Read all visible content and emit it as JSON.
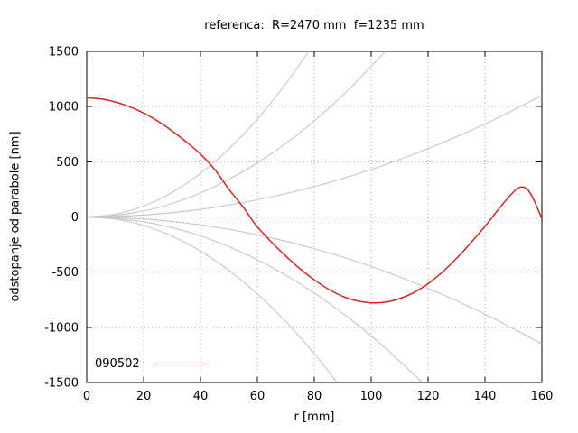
{
  "chart_data": {
    "type": "line",
    "title": "referenca:  R=2470 mm  f=1235 mm",
    "xlabel": "r [mm]",
    "ylabel": "odstopanje od parabole [nm]",
    "xlim": [
      0,
      160
    ],
    "ylim": [
      -1500,
      1500
    ],
    "x_ticks": [
      0,
      20,
      40,
      60,
      80,
      100,
      120,
      140,
      160
    ],
    "y_ticks": [
      -1500,
      -1000,
      -500,
      0,
      500,
      1000,
      1500
    ],
    "grid": "dotted",
    "legend": {
      "label": "090502",
      "position": "bottom-left"
    },
    "colors": {
      "measurement": "#dd2222",
      "reference": "#c6c6c6",
      "grid": "#9e9e9e",
      "axis": "#000000"
    },
    "series": [
      {
        "name": "reference-up-steep",
        "role": "reference",
        "points": [
          [
            0,
            0
          ],
          [
            10,
            25
          ],
          [
            20,
            99
          ],
          [
            30,
            222
          ],
          [
            40,
            395
          ],
          [
            50,
            617
          ],
          [
            60,
            888
          ],
          [
            70,
            1208
          ],
          [
            78,
            1500
          ]
        ]
      },
      {
        "name": "reference-up-mid",
        "role": "reference",
        "points": [
          [
            0,
            0
          ],
          [
            15,
            31
          ],
          [
            30,
            122
          ],
          [
            45,
            276
          ],
          [
            60,
            490
          ],
          [
            75,
            765
          ],
          [
            90,
            1102
          ],
          [
            105,
            1500
          ]
        ]
      },
      {
        "name": "reference-up-shallow",
        "role": "reference",
        "points": [
          [
            0,
            0
          ],
          [
            20,
            17
          ],
          [
            40,
            69
          ],
          [
            60,
            155
          ],
          [
            80,
            275
          ],
          [
            100,
            430
          ],
          [
            120,
            619
          ],
          [
            140,
            842
          ],
          [
            160,
            1100
          ]
        ]
      },
      {
        "name": "reference-down-steep",
        "role": "reference",
        "points": [
          [
            0,
            0
          ],
          [
            10,
            -19
          ],
          [
            20,
            -77
          ],
          [
            30,
            -174
          ],
          [
            40,
            -310
          ],
          [
            50,
            -484
          ],
          [
            60,
            -697
          ],
          [
            70,
            -949
          ],
          [
            80,
            -1240
          ],
          [
            88,
            -1500
          ]
        ]
      },
      {
        "name": "reference-down-mid",
        "role": "reference",
        "points": [
          [
            0,
            0
          ],
          [
            20,
            -43
          ],
          [
            40,
            -172
          ],
          [
            60,
            -388
          ],
          [
            80,
            -689
          ],
          [
            100,
            -1077
          ],
          [
            118,
            -1500
          ]
        ]
      },
      {
        "name": "reference-down-shallow",
        "role": "reference",
        "points": [
          [
            0,
            0
          ],
          [
            20,
            -18
          ],
          [
            40,
            -72
          ],
          [
            60,
            -162
          ],
          [
            80,
            -287
          ],
          [
            100,
            -449
          ],
          [
            120,
            -647
          ],
          [
            140,
            -880
          ],
          [
            160,
            -1150
          ]
        ]
      },
      {
        "name": "090502",
        "role": "measurement",
        "points": [
          [
            0,
            1080
          ],
          [
            5,
            1070
          ],
          [
            10,
            1042
          ],
          [
            15,
            1000
          ],
          [
            20,
            942
          ],
          [
            25,
            868
          ],
          [
            30,
            780
          ],
          [
            35,
            680
          ],
          [
            40,
            570
          ],
          [
            45,
            430
          ],
          [
            50,
            250
          ],
          [
            55,
            90
          ],
          [
            57,
            15
          ],
          [
            60,
            -90
          ],
          [
            65,
            -230
          ],
          [
            70,
            -355
          ],
          [
            75,
            -470
          ],
          [
            80,
            -570
          ],
          [
            85,
            -655
          ],
          [
            90,
            -720
          ],
          [
            95,
            -760
          ],
          [
            100,
            -778
          ],
          [
            105,
            -772
          ],
          [
            110,
            -740
          ],
          [
            115,
            -685
          ],
          [
            120,
            -605
          ],
          [
            125,
            -500
          ],
          [
            130,
            -375
          ],
          [
            135,
            -235
          ],
          [
            140,
            -85
          ],
          [
            144,
            45
          ],
          [
            148,
            170
          ],
          [
            151,
            250
          ],
          [
            153,
            272
          ],
          [
            155,
            248
          ],
          [
            157,
            165
          ],
          [
            159,
            45
          ],
          [
            160,
            -15
          ]
        ]
      }
    ]
  }
}
